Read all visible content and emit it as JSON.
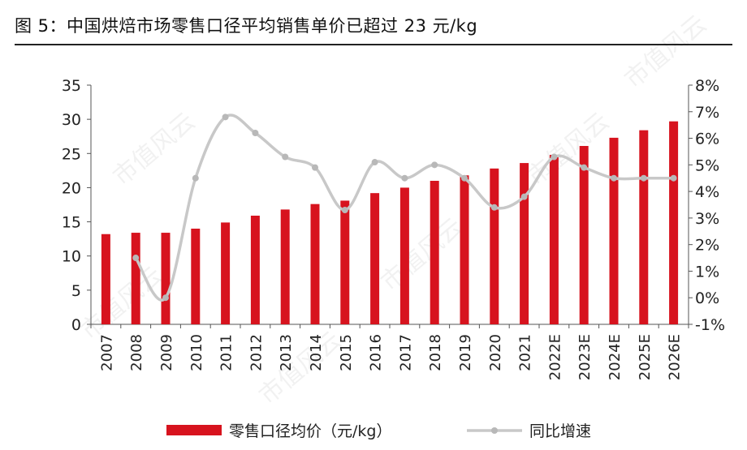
{
  "title": "图 5：中国烘焙市场零售口径平均销售单价已超过 23 元/kg",
  "watermark": "市值风云",
  "chart_data": {
    "type": "bar",
    "categories": [
      "2007",
      "2008",
      "2009",
      "2010",
      "2011",
      "2012",
      "2013",
      "2014",
      "2015",
      "2016",
      "2017",
      "2018",
      "2019",
      "2020",
      "2021",
      "2022E",
      "2023E",
      "2024E",
      "2025E",
      "2026E"
    ],
    "series": [
      {
        "name": "零售口径均价（元/kg）",
        "type": "bar",
        "axis": "left",
        "color": "#d7131e",
        "values": [
          13.2,
          13.4,
          13.4,
          14.0,
          14.9,
          15.9,
          16.8,
          17.6,
          18.1,
          19.2,
          20.0,
          21.0,
          21.8,
          22.8,
          23.6,
          24.8,
          26.1,
          27.3,
          28.4,
          29.7
        ]
      },
      {
        "name": "同比增速",
        "type": "line",
        "axis": "right",
        "color": "#c8c8c8",
        "values": [
          null,
          1.5,
          0.0,
          4.5,
          6.8,
          6.2,
          5.3,
          4.9,
          3.3,
          5.1,
          4.5,
          5.0,
          4.5,
          3.4,
          3.8,
          5.3,
          4.9,
          4.5,
          4.5,
          4.5
        ]
      }
    ],
    "y_left": {
      "min": 0,
      "max": 35,
      "step": 5,
      "ticks": [
        "0",
        "5",
        "10",
        "15",
        "20",
        "25",
        "30",
        "35"
      ]
    },
    "y_right": {
      "min": -1,
      "max": 8,
      "step": 1,
      "unit": "%",
      "ticks": [
        "-1%",
        "0%",
        "1%",
        "2%",
        "3%",
        "4%",
        "5%",
        "6%",
        "7%",
        "8%"
      ]
    },
    "legend_position": "bottom",
    "grid": false
  }
}
